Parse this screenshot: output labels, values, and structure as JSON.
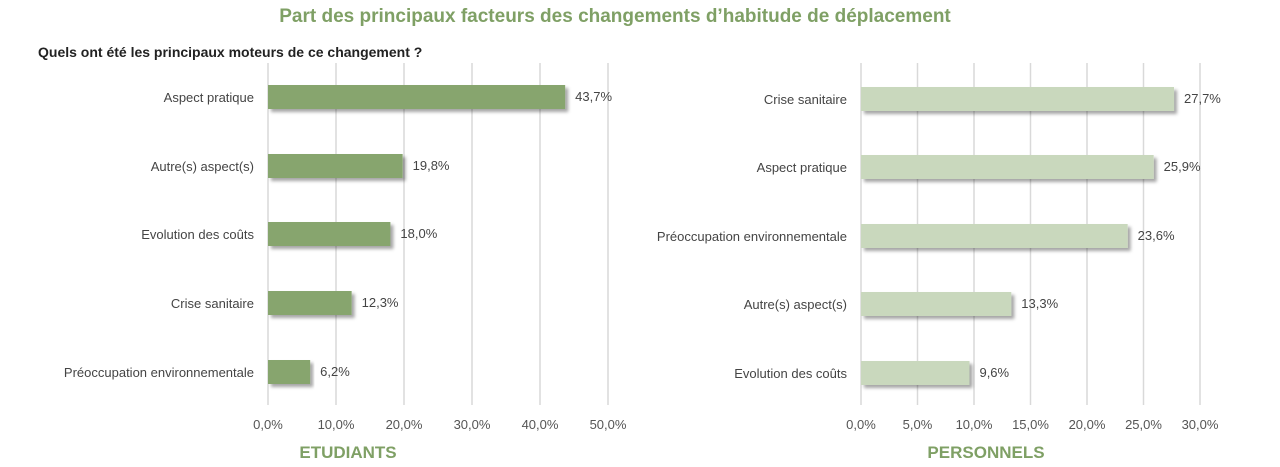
{
  "title": "Part des principaux facteurs des changements d’habitude de déplacement",
  "question": "Quels ont été les principaux moteurs de ce changement ?",
  "chart_data": [
    {
      "type": "bar",
      "orientation": "horizontal",
      "group_label": "ETUDIANTS",
      "color": "#87a56e",
      "categories": [
        "Aspect pratique",
        "Autre(s) aspect(s)",
        "Evolution des coûts",
        "Crise sanitaire",
        "Préoccupation environnementale"
      ],
      "values": [
        43.7,
        19.8,
        18.0,
        12.3,
        6.2
      ],
      "value_labels": [
        "43,7%",
        "19,8%",
        "18,0%",
        "12,3%",
        "6,2%"
      ],
      "xlim": [
        0,
        50
      ],
      "ticks": [
        0,
        10,
        20,
        30,
        40,
        50
      ],
      "tick_labels": [
        "0,0%",
        "10,0%",
        "20,0%",
        "30,0%",
        "40,0%",
        "50,0%"
      ],
      "grid": true
    },
    {
      "type": "bar",
      "orientation": "horizontal",
      "group_label": "PERSONNELS",
      "color": "#c9d8bd",
      "categories": [
        "Crise sanitaire",
        "Aspect pratique",
        "Préoccupation environnementale",
        "Autre(s) aspect(s)",
        "Evolution des coûts"
      ],
      "values": [
        27.7,
        25.9,
        23.6,
        13.3,
        9.6
      ],
      "value_labels": [
        "27,7%",
        "25,9%",
        "23,6%",
        "13,3%",
        "9,6%"
      ],
      "xlim": [
        0,
        30
      ],
      "ticks": [
        0,
        5,
        10,
        15,
        20,
        25,
        30
      ],
      "tick_labels": [
        "0,0%",
        "5,0%",
        "10,0%",
        "15,0%",
        "20,0%",
        "25,0%",
        "30,0%"
      ],
      "grid": true
    }
  ]
}
